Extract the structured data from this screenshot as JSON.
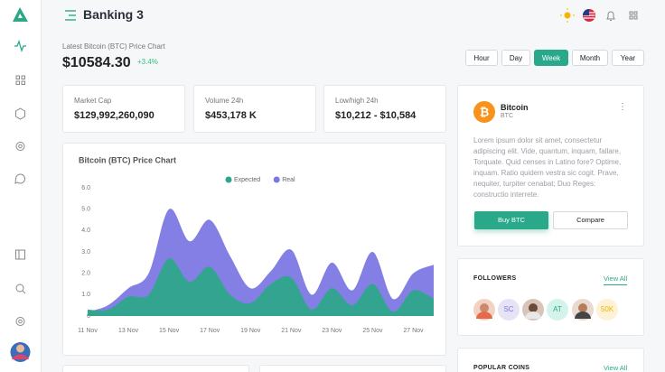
{
  "header": {
    "title": "Banking 3"
  },
  "price": {
    "caption": "Latest Bitcoin (BTC) Price Chart",
    "value": "$10584.30",
    "change": "+3.4%"
  },
  "periods": [
    "Hour",
    "Day",
    "Week",
    "Month",
    "Year"
  ],
  "stats": [
    {
      "label": "Market Cap",
      "value": "$129,992,260,090"
    },
    {
      "label": "Volume 24h",
      "value": "$453,178 K"
    },
    {
      "label": "Low/high 24h",
      "value": "$10,212 - $10,584"
    }
  ],
  "coin": {
    "name": "Bitcoin",
    "symbol": "BTC",
    "description": "Lorem ipsum dolor sit amet, consectetur adipiscing elit. Vide, quantum, inquam, fallare, Torquate. Quid censes in Latino fore? Optime, inquam. Ratio quidem vestra sic cogit. Prave, nequiter, turpiter cenabat; Duo Reges: constructio interrete.",
    "buy": "Buy BTC",
    "compare": "Compare"
  },
  "followers": {
    "title": "FOLLOWERS",
    "link": "View All",
    "badges": [
      "SC",
      "AT",
      "50K"
    ]
  },
  "popular": {
    "title": "POPULAR COINS",
    "link": "View All"
  },
  "chart_data": {
    "type": "area",
    "title": "Bitcoin (BTC) Price Chart",
    "categories": [
      "11 Nov",
      null,
      "13 Nov",
      null,
      "15 Nov",
      null,
      "17 Nov",
      null,
      "19 Nov",
      null,
      "21 Nov",
      null,
      "23 Nov",
      null,
      "25 Nov",
      null,
      "27 Nov",
      null
    ],
    "series": [
      {
        "name": "Real",
        "color": "#7c78e3",
        "values": [
          0.2,
          0.5,
          1.3,
          2.0,
          5.0,
          3.5,
          4.5,
          2.8,
          1.3,
          2.1,
          3.1,
          1.0,
          2.5,
          1.2,
          3.0,
          0.8,
          2.0,
          2.4
        ]
      },
      {
        "name": "Expected",
        "color": "#2ea68a",
        "values": [
          0.3,
          0.3,
          0.9,
          1.0,
          2.7,
          1.6,
          2.3,
          1.0,
          0.6,
          1.5,
          1.8,
          0.3,
          1.3,
          0.5,
          1.5,
          0.2,
          1.2,
          0.8
        ]
      }
    ],
    "ylim": [
      0,
      6
    ],
    "yticks": [
      0,
      {
        "value": 1,
        "label": "1.0"
      },
      {
        "value": 2,
        "label": "2.0"
      },
      {
        "value": 3,
        "label": "3.0"
      },
      {
        "value": 4,
        "label": "4.0"
      },
      {
        "value": 5,
        "label": "5.0"
      },
      {
        "value": 6,
        "label": "6.0"
      }
    ]
  }
}
